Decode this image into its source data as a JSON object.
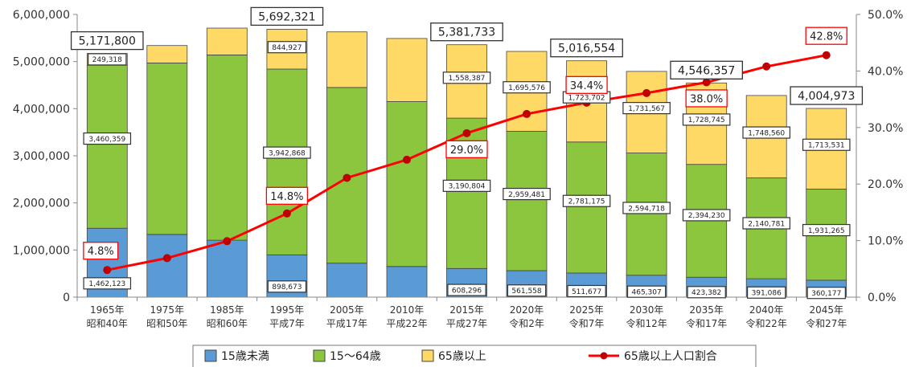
{
  "chart_data": {
    "type": "bar",
    "stacked": true,
    "categories": [
      [
        "1965年",
        "昭和40年"
      ],
      [
        "1975年",
        "昭和50年"
      ],
      [
        "1985年",
        "昭和60年"
      ],
      [
        "1995年",
        "平成7年"
      ],
      [
        "2005年",
        "平成17年"
      ],
      [
        "2010年",
        "平成22年"
      ],
      [
        "2015年",
        "平成27年"
      ],
      [
        "2020年",
        "令和2年"
      ],
      [
        "2025年",
        "令和7年"
      ],
      [
        "2030年",
        "令和12年"
      ],
      [
        "2035年",
        "令和17年"
      ],
      [
        "2040年",
        "令和22年"
      ],
      [
        "2045年",
        "令和27年"
      ]
    ],
    "series": [
      {
        "name": "15歳未満",
        "color": "#5B9BD5",
        "values": [
          1462123,
          1330000,
          1210000,
          898673,
          720000,
          650000,
          608296,
          561558,
          511677,
          465307,
          423382,
          391086,
          360177
        ],
        "labels": [
          "1,462,123",
          "",
          "",
          "898,673",
          "",
          "",
          "608,296",
          "561,558",
          "511,677",
          "465,307",
          "423,382",
          "391,086",
          "360,177"
        ]
      },
      {
        "name": "15～64歳",
        "color": "#8CC63F",
        "values": [
          3460359,
          3640000,
          3930000,
          3942868,
          3730000,
          3500000,
          3190804,
          2959481,
          2781175,
          2594718,
          2394230,
          2140781,
          1931265
        ],
        "labels": [
          "3,460,359",
          "",
          "",
          "3,942,868",
          "",
          "",
          "3,190,804",
          "2,959,481",
          "2,781,175",
          "2,594,718",
          "2,394,230",
          "2,140,781",
          "1,931,265"
        ]
      },
      {
        "name": "65歳以上",
        "color": "#FFD966",
        "values": [
          249318,
          370000,
          570000,
          844927,
          1180000,
          1340000,
          1558387,
          1695576,
          1723702,
          1731567,
          1728745,
          1748560,
          1713531
        ],
        "labels": [
          "249,318",
          "",
          "",
          "844,927",
          "",
          "",
          "1,558,387",
          "1,695,576",
          "1,723,702",
          "1,731,567",
          "1,728,745",
          "1,748,560",
          "1,713,531"
        ]
      }
    ],
    "totals": [
      "5,171,800",
      "",
      "",
      "5,692,321",
      "",
      "",
      "5,381,733",
      "",
      "5,016,554",
      "",
      "4,546,357",
      "",
      "4,004,973"
    ],
    "line": {
      "name": "65歳以上人口割合",
      "color": "#FF0000",
      "values": [
        4.8,
        6.9,
        9.9,
        14.8,
        21.1,
        24.3,
        29.0,
        32.4,
        34.4,
        36.1,
        38.0,
        40.8,
        42.8
      ],
      "labels": [
        "4.8%",
        "",
        "",
        "14.8%",
        "",
        "",
        "29.0%",
        "",
        "34.4%",
        "",
        "38.0%",
        "",
        "42.8%"
      ]
    },
    "y_left": {
      "min": 0,
      "max": 6000000,
      "ticks": [
        0,
        1000000,
        2000000,
        3000000,
        4000000,
        5000000,
        6000000
      ],
      "tick_labels": [
        "0",
        "1,000,000",
        "2,000,000",
        "3,000,000",
        "4,000,000",
        "5,000,000",
        "6,000,000"
      ]
    },
    "y_right": {
      "min": 0,
      "max": 50,
      "ticks": [
        0,
        10,
        20,
        30,
        40,
        50
      ],
      "tick_labels": [
        "0.0%",
        "10.0%",
        "20.0%",
        "30.0%",
        "40.0%",
        "50.0%"
      ]
    },
    "legend": "bottom",
    "grid": false
  }
}
